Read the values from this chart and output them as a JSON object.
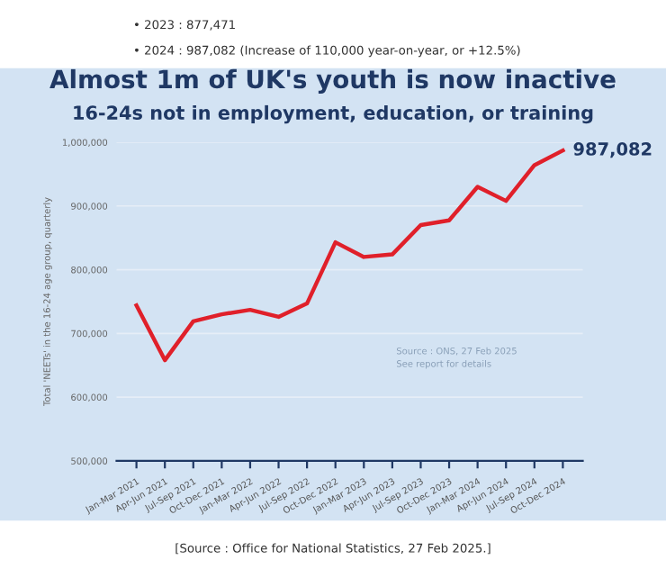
{
  "chart_data": {
    "type": "line",
    "title": "Almost 1m of UK's youth is now inactive",
    "subtitle": "16-24s not in employment, education, or training",
    "ylabel": "Total 'NEETs' in the 16-24 age group, quarterly",
    "categories": [
      "Jan-Mar 2021",
      "Apr-Jun 2021",
      "Jul-Sep 2021",
      "Oct-Dec 2021",
      "Jan-Mar 2022",
      "Apr-Jun 2022",
      "Jul-Sep 2022",
      "Oct-Dec 2022",
      "Jan-Mar 2023",
      "Apr-Jun 2023",
      "Jul-Sep 2023",
      "Oct-Dec 2023",
      "Jan-Mar 2024",
      "Apr-Jun 2024",
      "Jul-Sep 2024",
      "Oct-Dec 2024"
    ],
    "series": [
      {
        "color": "#e0202a",
        "values": [
          744000,
          658000,
          719000,
          730000,
          737000,
          726000,
          747000,
          843000,
          820000,
          824000,
          870000,
          877471,
          930000,
          908000,
          964000,
          987082
        ],
        "value_labels": [
          null,
          null,
          null,
          null,
          null,
          null,
          null,
          null,
          null,
          null,
          null,
          null,
          null,
          null,
          null,
          "987,082"
        ]
      }
    ],
    "ylim": [
      500000,
      1000000
    ],
    "yticks": [
      {
        "value": 500000,
        "label": "500,000"
      },
      {
        "value": 600000,
        "label": "600,000"
      },
      {
        "value": 700000,
        "label": "700,000"
      },
      {
        "value": 800000,
        "label": "800,000"
      },
      {
        "value": 900000,
        "label": "900,000"
      },
      {
        "value": 1000000,
        "label": "1,000,000"
      }
    ],
    "grid": "y",
    "marker": "none",
    "line_style": "solid",
    "legend": false,
    "annotations": [
      "• 2023 : 877,471",
      "• 2024 : 987,082 (Increase of 110,000 year-on-year, or +12.5%)",
      "Source : ONS, 27 Feb 2025",
      "See report for details",
      "[Source : Office for National Statistics, 27 Feb 2025.]"
    ]
  }
}
